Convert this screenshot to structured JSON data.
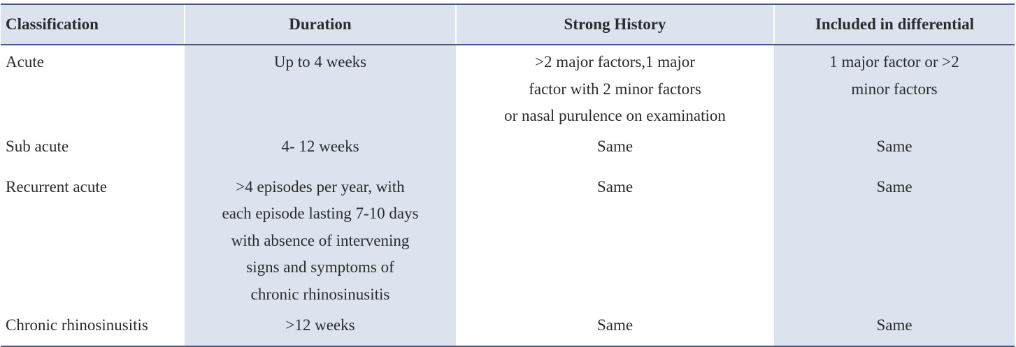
{
  "table": {
    "headers": [
      "Classification",
      "Duration",
      "Strong History",
      "Included in differential"
    ],
    "rows": [
      {
        "classification": "Acute",
        "duration": [
          "Up to 4 weeks"
        ],
        "strong_history": [
          ">2 major factors,1 major",
          "factor with 2 minor factors",
          "or nasal purulence on examination"
        ],
        "included": [
          "1 major factor or >2",
          "minor factors"
        ]
      },
      {
        "classification": "Sub acute",
        "duration": [
          "4- 12 weeks"
        ],
        "strong_history": [
          "Same"
        ],
        "included": [
          "Same"
        ]
      },
      {
        "classification": "Recurrent acute",
        "duration": [
          ">4 episodes per year, with",
          "each episode lasting 7-10 days",
          "with absence of intervening",
          "signs and symptoms of",
          "chronic rhinosinusitis"
        ],
        "strong_history": [
          "Same"
        ],
        "included": [
          "Same"
        ]
      },
      {
        "classification": "Chronic rhinosinusitis",
        "duration": [
          ">12 weeks"
        ],
        "strong_history": [
          "Same"
        ],
        "included": [
          "Same"
        ]
      }
    ]
  }
}
